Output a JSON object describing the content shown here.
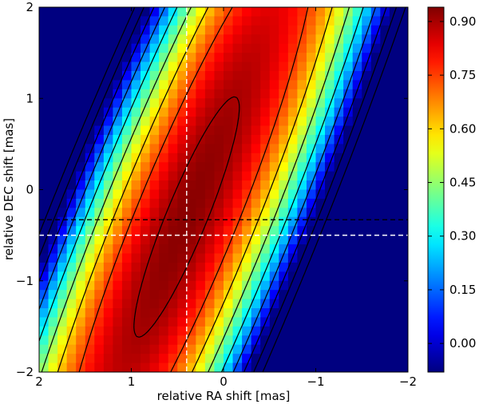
{
  "chart_data": {
    "type": "heatmap",
    "title": "",
    "xlabel": "relative RA shift [mas]",
    "ylabel": "relative DEC shift [mas]",
    "xlim": [
      2,
      -2
    ],
    "ylim": [
      -2,
      2
    ],
    "x_ticks": [
      2,
      1,
      0,
      -1,
      -2
    ],
    "x_tick_labels": [
      "2",
      "1",
      "0",
      "−1",
      "−2"
    ],
    "y_ticks": [
      -2,
      -1,
      0,
      1,
      2
    ],
    "y_tick_labels": [
      "−2",
      "−1",
      "0",
      "1",
      "2"
    ],
    "colorbar": {
      "colormap": "jet",
      "range": [
        -0.08,
        0.94
      ],
      "ticks": [
        0.0,
        0.15,
        0.3,
        0.45,
        0.6,
        0.75,
        0.9
      ],
      "tick_labels": [
        "0.00",
        "0.15",
        "0.30",
        "0.45",
        "0.60",
        "0.75",
        "0.90"
      ]
    },
    "peak": {
      "x": 0.4,
      "y": -0.3,
      "value": 0.93
    },
    "contour_levels": [
      0.9,
      0.75,
      0.6,
      0.45,
      0.3,
      0.15,
      0.0,
      -0.15,
      -0.3
    ],
    "reference_lines": [
      {
        "orientation": "vertical",
        "value": 0.4,
        "color": "#ffffff",
        "style": "dashed"
      },
      {
        "orientation": "horizontal",
        "value": -0.5,
        "color": "#ffffff",
        "style": "dashed"
      },
      {
        "orientation": "horizontal",
        "value": -0.33,
        "color": "#000000",
        "style": "dashed"
      }
    ]
  }
}
